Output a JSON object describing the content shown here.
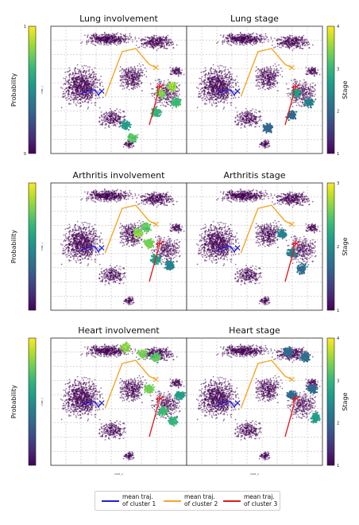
{
  "colors": {
    "viridis": [
      "#440154",
      "#482878",
      "#3e4989",
      "#31688e",
      "#26828e",
      "#1f9e89",
      "#35b779",
      "#6ece58",
      "#b5de2b",
      "#fde725"
    ],
    "cluster1": "#1f1fd6",
    "cluster2": "#f5a623",
    "cluster3": "#e31a1c",
    "grid": "#b0b0b0"
  },
  "chart_data": [
    {
      "type": "scatter",
      "title": "Lung involvement",
      "colorbar": {
        "label": "Probability",
        "ticks": [
          "0",
          "1"
        ]
      },
      "xlabel": "tSNE_0",
      "ylabel": "tSNE_1",
      "grid": true,
      "highlight": [
        {
          "x": 0.62,
          "y": -0.05,
          "level": 0.85
        },
        {
          "x": 0.78,
          "y": 0.05,
          "level": 0.9
        },
        {
          "x": 0.55,
          "y": -0.35,
          "level": 0.7
        },
        {
          "x": 0.2,
          "y": -0.75,
          "level": 0.8
        },
        {
          "x": 0.1,
          "y": -0.55,
          "level": 0.6
        },
        {
          "x": 0.85,
          "y": -0.2,
          "level": 0.75
        }
      ]
    },
    {
      "type": "scatter",
      "title": "Lung stage",
      "colorbar": {
        "label": "Stage",
        "ticks": [
          "1",
          "2",
          "3",
          "4"
        ]
      },
      "xlabel": "tSNE_0",
      "ylabel": "tSNE_1",
      "grid": true,
      "highlight": [
        {
          "x": 0.62,
          "y": -0.05,
          "level": 0.6
        },
        {
          "x": 0.8,
          "y": -0.2,
          "level": 0.45
        },
        {
          "x": 0.2,
          "y": -0.6,
          "level": 0.35
        },
        {
          "x": 0.55,
          "y": -0.4,
          "level": 0.4
        }
      ]
    },
    {
      "type": "scatter",
      "title": "Arthritis involvement",
      "colorbar": {
        "label": "Probability",
        "ticks": []
      },
      "xlabel": "tSNE_0",
      "ylabel": "tSNE_1",
      "grid": true,
      "highlight": [
        {
          "x": 0.28,
          "y": 0.22,
          "level": 0.9
        },
        {
          "x": 0.45,
          "y": 0.05,
          "level": 0.85
        },
        {
          "x": 0.4,
          "y": 0.3,
          "level": 0.8
        },
        {
          "x": 0.55,
          "y": -0.2,
          "level": 0.6
        },
        {
          "x": 0.75,
          "y": -0.3,
          "level": 0.5
        }
      ]
    },
    {
      "type": "scatter",
      "title": "Arthritis stage",
      "colorbar": {
        "label": "Stage",
        "ticks": [
          "1",
          "2",
          "3"
        ]
      },
      "xlabel": "tSNE_0",
      "ylabel": "tSNE_1",
      "grid": true,
      "highlight": [
        {
          "x": 0.4,
          "y": 0.2,
          "level": 0.5
        },
        {
          "x": 0.55,
          "y": -0.1,
          "level": 0.45
        },
        {
          "x": 0.7,
          "y": -0.35,
          "level": 0.4
        }
      ]
    },
    {
      "type": "scatter",
      "title": "Heart involvement",
      "colorbar": {
        "label": "Probability",
        "ticks": []
      },
      "xlabel": "tSNE_0",
      "ylabel": "tSNE_1",
      "grid": true,
      "highlight": [
        {
          "x": 0.1,
          "y": 0.85,
          "level": 0.9
        },
        {
          "x": 0.35,
          "y": 0.75,
          "level": 0.85
        },
        {
          "x": 0.55,
          "y": 0.7,
          "level": 0.8
        },
        {
          "x": 0.45,
          "y": 0.2,
          "level": 0.85
        },
        {
          "x": 0.65,
          "y": -0.15,
          "level": 0.75
        },
        {
          "x": 0.8,
          "y": -0.3,
          "level": 0.7
        },
        {
          "x": 0.9,
          "y": 0.1,
          "level": 0.6
        }
      ]
    },
    {
      "type": "scatter",
      "title": "Heart stage",
      "colorbar": {
        "label": "Stage",
        "ticks": [
          "1",
          "2",
          "3",
          "4"
        ]
      },
      "xlabel": "tSNE_0",
      "ylabel": "tSNE_1",
      "grid": true,
      "highlight": [
        {
          "x": 0.5,
          "y": 0.78,
          "level": 0.4
        },
        {
          "x": 0.75,
          "y": 0.7,
          "level": 0.4
        },
        {
          "x": 0.85,
          "y": 0.2,
          "level": 0.35
        },
        {
          "x": 0.9,
          "y": -0.25,
          "level": 0.6
        },
        {
          "x": 0.55,
          "y": 0.1,
          "level": 0.4
        }
      ]
    }
  ],
  "trajectories": [
    {
      "cluster": 1,
      "points": [
        [
          -0.55,
          -0.05
        ],
        [
          -0.45,
          -0.02
        ],
        [
          -0.35,
          0.0
        ],
        [
          -0.3,
          -0.08
        ],
        [
          -0.25,
          -0.02
        ]
      ]
    },
    {
      "cluster": 2,
      "points": [
        [
          -0.2,
          -0.1
        ],
        [
          0.05,
          0.6
        ],
        [
          0.25,
          0.65
        ],
        [
          0.45,
          0.4
        ],
        [
          0.55,
          0.35
        ]
      ]
    },
    {
      "cluster": 3,
      "points": [
        [
          0.45,
          -0.55
        ],
        [
          0.58,
          -0.05
        ],
        [
          0.57,
          0.05
        ],
        [
          0.62,
          0.05
        ]
      ]
    }
  ],
  "legend": [
    {
      "label": "mean traj.\nof cluster 1"
    },
    {
      "label": "mean traj.\nof cluster 2"
    },
    {
      "label": "mean traj.\nof cluster 3"
    }
  ]
}
